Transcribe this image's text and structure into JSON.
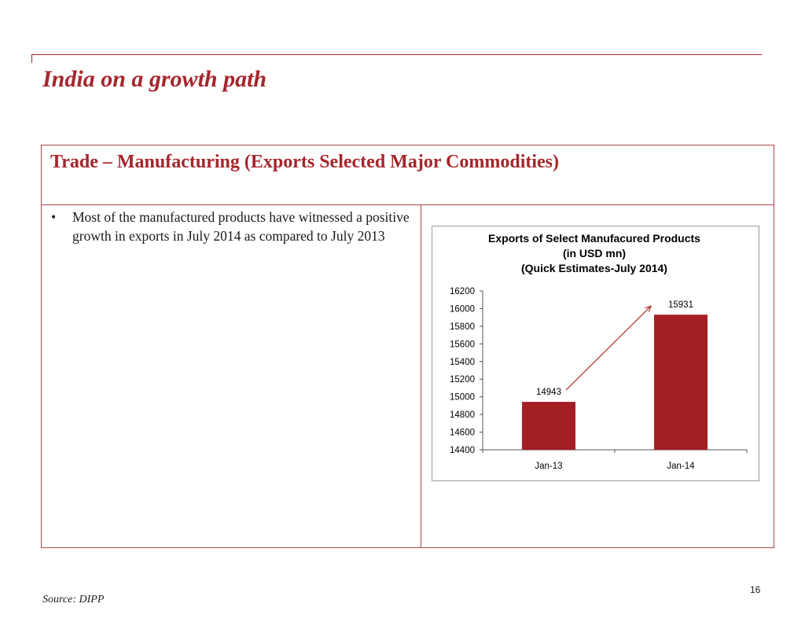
{
  "slide": {
    "title": "India on a growth path",
    "section_heading": "Trade – Manufacturing (Exports Selected Major Commodities)",
    "bullets": [
      "Most of the manufactured products have witnessed a positive growth in exports in July 2014 as compared to July 2013"
    ],
    "bullet_symbol": "•",
    "source": "Source: DIPP",
    "page_number": "16"
  },
  "colors": {
    "accent": "#a4262c",
    "bar": "#a31f24",
    "frame": "#a64a4a",
    "arrow": "#b03030"
  },
  "chart_data": {
    "type": "bar",
    "title_lines": [
      "Exports of Select Manufacured Products",
      "(in USD mn)",
      "(Quick Estimates-July 2014)"
    ],
    "categories": [
      "Jan-13",
      "Jan-14"
    ],
    "values": [
      14943,
      15931
    ],
    "data_labels": [
      "14943",
      "15931"
    ],
    "ylim": [
      14400,
      16200
    ],
    "y_ticks": [
      14400,
      14600,
      14800,
      15000,
      15200,
      15400,
      15600,
      15800,
      16000,
      16200
    ],
    "xlabel": "",
    "ylabel": "",
    "grid": false,
    "legend": "none",
    "annotation": "arrow from Jan-13 label to Jan-14 label"
  }
}
